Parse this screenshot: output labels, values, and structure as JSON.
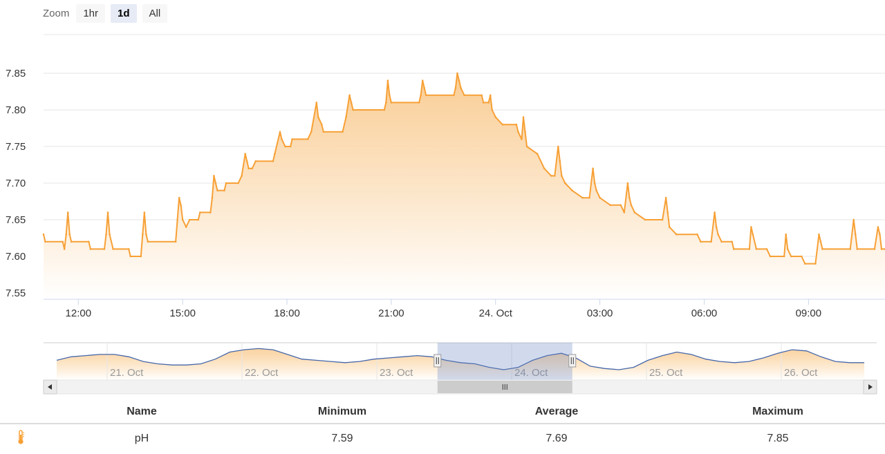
{
  "zoom": {
    "label": "Zoom",
    "buttons": [
      "1hr",
      "1d",
      "All"
    ],
    "active": "1d"
  },
  "colors": {
    "line": "#f7a035",
    "fill_top": "#f9c88a",
    "fill_bottom": "#ffffff",
    "navigator_line": "#4466aa",
    "navigator_mask": "rgba(102,133,194,0.3)",
    "grid": "#e6e6e6"
  },
  "chart_data": {
    "type": "area",
    "x_label": "",
    "y_label": "",
    "y_ticks": [
      "7.55",
      "7.60",
      "7.65",
      "7.70",
      "7.75",
      "7.80",
      "7.85"
    ],
    "ylim": [
      7.55,
      7.85
    ],
    "x_range_hours": [
      11.0,
      35.2
    ],
    "x_ticks": [
      {
        "hour": 12,
        "label": "12:00"
      },
      {
        "hour": 15,
        "label": "15:00"
      },
      {
        "hour": 18,
        "label": "18:00"
      },
      {
        "hour": 21,
        "label": "21:00"
      },
      {
        "hour": 24,
        "label": "24. Oct"
      },
      {
        "hour": 27,
        "label": "03:00"
      },
      {
        "hour": 30,
        "label": "06:00"
      },
      {
        "hour": 33,
        "label": "09:00"
      }
    ],
    "series": [
      {
        "points": [
          [
            11.0,
            7.63
          ],
          [
            11.05,
            7.62
          ],
          [
            11.55,
            7.62
          ],
          [
            11.6,
            7.61
          ],
          [
            11.65,
            7.63
          ],
          [
            11.7,
            7.66
          ],
          [
            11.75,
            7.63
          ],
          [
            11.8,
            7.62
          ],
          [
            12.3,
            7.62
          ],
          [
            12.35,
            7.61
          ],
          [
            12.75,
            7.61
          ],
          [
            12.8,
            7.63
          ],
          [
            12.85,
            7.66
          ],
          [
            12.9,
            7.63
          ],
          [
            13.0,
            7.61
          ],
          [
            13.45,
            7.61
          ],
          [
            13.5,
            7.6
          ],
          [
            13.8,
            7.6
          ],
          [
            13.85,
            7.63
          ],
          [
            13.9,
            7.66
          ],
          [
            13.95,
            7.63
          ],
          [
            14.0,
            7.62
          ],
          [
            14.8,
            7.62
          ],
          [
            14.85,
            7.65
          ],
          [
            14.9,
            7.68
          ],
          [
            14.95,
            7.67
          ],
          [
            15.0,
            7.65
          ],
          [
            15.1,
            7.64
          ],
          [
            15.2,
            7.65
          ],
          [
            15.45,
            7.65
          ],
          [
            15.5,
            7.66
          ],
          [
            15.8,
            7.66
          ],
          [
            15.85,
            7.68
          ],
          [
            15.9,
            7.71
          ],
          [
            15.95,
            7.7
          ],
          [
            16.0,
            7.69
          ],
          [
            16.2,
            7.69
          ],
          [
            16.25,
            7.7
          ],
          [
            16.6,
            7.7
          ],
          [
            16.7,
            7.71
          ],
          [
            16.8,
            7.74
          ],
          [
            16.85,
            7.73
          ],
          [
            16.9,
            7.72
          ],
          [
            17.0,
            7.72
          ],
          [
            17.1,
            7.73
          ],
          [
            17.6,
            7.73
          ],
          [
            17.65,
            7.74
          ],
          [
            17.8,
            7.77
          ],
          [
            17.85,
            7.76
          ],
          [
            17.95,
            7.75
          ],
          [
            18.1,
            7.75
          ],
          [
            18.15,
            7.76
          ],
          [
            18.6,
            7.76
          ],
          [
            18.7,
            7.77
          ],
          [
            18.85,
            7.81
          ],
          [
            18.9,
            7.79
          ],
          [
            19.0,
            7.78
          ],
          [
            19.05,
            7.77
          ],
          [
            19.6,
            7.77
          ],
          [
            19.7,
            7.79
          ],
          [
            19.8,
            7.82
          ],
          [
            19.85,
            7.81
          ],
          [
            19.9,
            7.8
          ],
          [
            20.8,
            7.8
          ],
          [
            20.85,
            7.81
          ],
          [
            20.9,
            7.84
          ],
          [
            20.95,
            7.82
          ],
          [
            21.0,
            7.81
          ],
          [
            21.8,
            7.81
          ],
          [
            21.85,
            7.82
          ],
          [
            21.9,
            7.84
          ],
          [
            21.95,
            7.83
          ],
          [
            22.0,
            7.82
          ],
          [
            22.8,
            7.82
          ],
          [
            22.85,
            7.83
          ],
          [
            22.9,
            7.85
          ],
          [
            22.95,
            7.84
          ],
          [
            23.0,
            7.83
          ],
          [
            23.1,
            7.82
          ],
          [
            23.6,
            7.82
          ],
          [
            23.65,
            7.81
          ],
          [
            23.8,
            7.81
          ],
          [
            23.85,
            7.82
          ],
          [
            23.9,
            7.8
          ],
          [
            24.0,
            7.79
          ],
          [
            24.2,
            7.78
          ],
          [
            24.6,
            7.78
          ],
          [
            24.65,
            7.77
          ],
          [
            24.75,
            7.76
          ],
          [
            24.8,
            7.79
          ],
          [
            24.85,
            7.77
          ],
          [
            24.9,
            7.75
          ],
          [
            25.2,
            7.74
          ],
          [
            25.4,
            7.72
          ],
          [
            25.6,
            7.71
          ],
          [
            25.7,
            7.71
          ],
          [
            25.8,
            7.75
          ],
          [
            25.85,
            7.73
          ],
          [
            25.9,
            7.71
          ],
          [
            26.0,
            7.7
          ],
          [
            26.2,
            7.69
          ],
          [
            26.5,
            7.68
          ],
          [
            26.7,
            7.68
          ],
          [
            26.8,
            7.72
          ],
          [
            26.85,
            7.7
          ],
          [
            26.9,
            7.69
          ],
          [
            27.0,
            7.68
          ],
          [
            27.3,
            7.67
          ],
          [
            27.6,
            7.67
          ],
          [
            27.7,
            7.66
          ],
          [
            27.8,
            7.7
          ],
          [
            27.85,
            7.68
          ],
          [
            27.9,
            7.67
          ],
          [
            28.0,
            7.66
          ],
          [
            28.3,
            7.65
          ],
          [
            28.8,
            7.65
          ],
          [
            28.9,
            7.68
          ],
          [
            28.95,
            7.66
          ],
          [
            29.0,
            7.64
          ],
          [
            29.2,
            7.63
          ],
          [
            29.8,
            7.63
          ],
          [
            29.9,
            7.62
          ],
          [
            30.2,
            7.62
          ],
          [
            30.3,
            7.66
          ],
          [
            30.35,
            7.64
          ],
          [
            30.4,
            7.63
          ],
          [
            30.5,
            7.62
          ],
          [
            30.8,
            7.62
          ],
          [
            30.85,
            7.61
          ],
          [
            31.3,
            7.61
          ],
          [
            31.35,
            7.64
          ],
          [
            31.4,
            7.63
          ],
          [
            31.5,
            7.61
          ],
          [
            31.8,
            7.61
          ],
          [
            31.9,
            7.6
          ],
          [
            32.3,
            7.6
          ],
          [
            32.35,
            7.63
          ],
          [
            32.4,
            7.61
          ],
          [
            32.5,
            7.6
          ],
          [
            32.8,
            7.6
          ],
          [
            32.9,
            7.59
          ],
          [
            33.2,
            7.59
          ],
          [
            33.3,
            7.63
          ],
          [
            33.35,
            7.62
          ],
          [
            33.4,
            7.61
          ],
          [
            34.2,
            7.61
          ],
          [
            34.3,
            7.65
          ],
          [
            34.35,
            7.63
          ],
          [
            34.4,
            7.61
          ],
          [
            34.9,
            7.61
          ],
          [
            35.0,
            7.64
          ],
          [
            35.05,
            7.63
          ],
          [
            35.1,
            7.61
          ],
          [
            35.2,
            7.61
          ]
        ]
      }
    ],
    "navigator": {
      "x_labels": [
        "21. Oct",
        "22. Oct",
        "23. Oct",
        "24. Oct",
        "25. Oct",
        "26. Oct"
      ],
      "values": [
        7.63,
        7.66,
        7.67,
        7.68,
        7.68,
        7.66,
        7.62,
        7.6,
        7.59,
        7.59,
        7.6,
        7.64,
        7.7,
        7.72,
        7.73,
        7.72,
        7.68,
        7.64,
        7.63,
        7.62,
        7.61,
        7.62,
        7.64,
        7.65,
        7.66,
        7.67,
        7.66,
        7.63,
        7.61,
        7.6,
        7.57,
        7.55,
        7.57,
        7.63,
        7.67,
        7.69,
        7.65,
        7.58,
        7.56,
        7.55,
        7.57,
        7.63,
        7.67,
        7.7,
        7.68,
        7.64,
        7.62,
        7.61,
        7.62,
        7.65,
        7.69,
        7.72,
        7.71,
        7.66,
        7.62,
        7.61,
        7.61
      ],
      "selection_days": [
        23.45,
        24.45
      ]
    }
  },
  "table": {
    "headers": [
      "Name",
      "Minimum",
      "Average",
      "Maximum"
    ],
    "rows": [
      {
        "icon": "thermometer-icon",
        "name": "pH",
        "minimum": "7.59",
        "average": "7.69",
        "maximum": "7.85"
      }
    ]
  }
}
